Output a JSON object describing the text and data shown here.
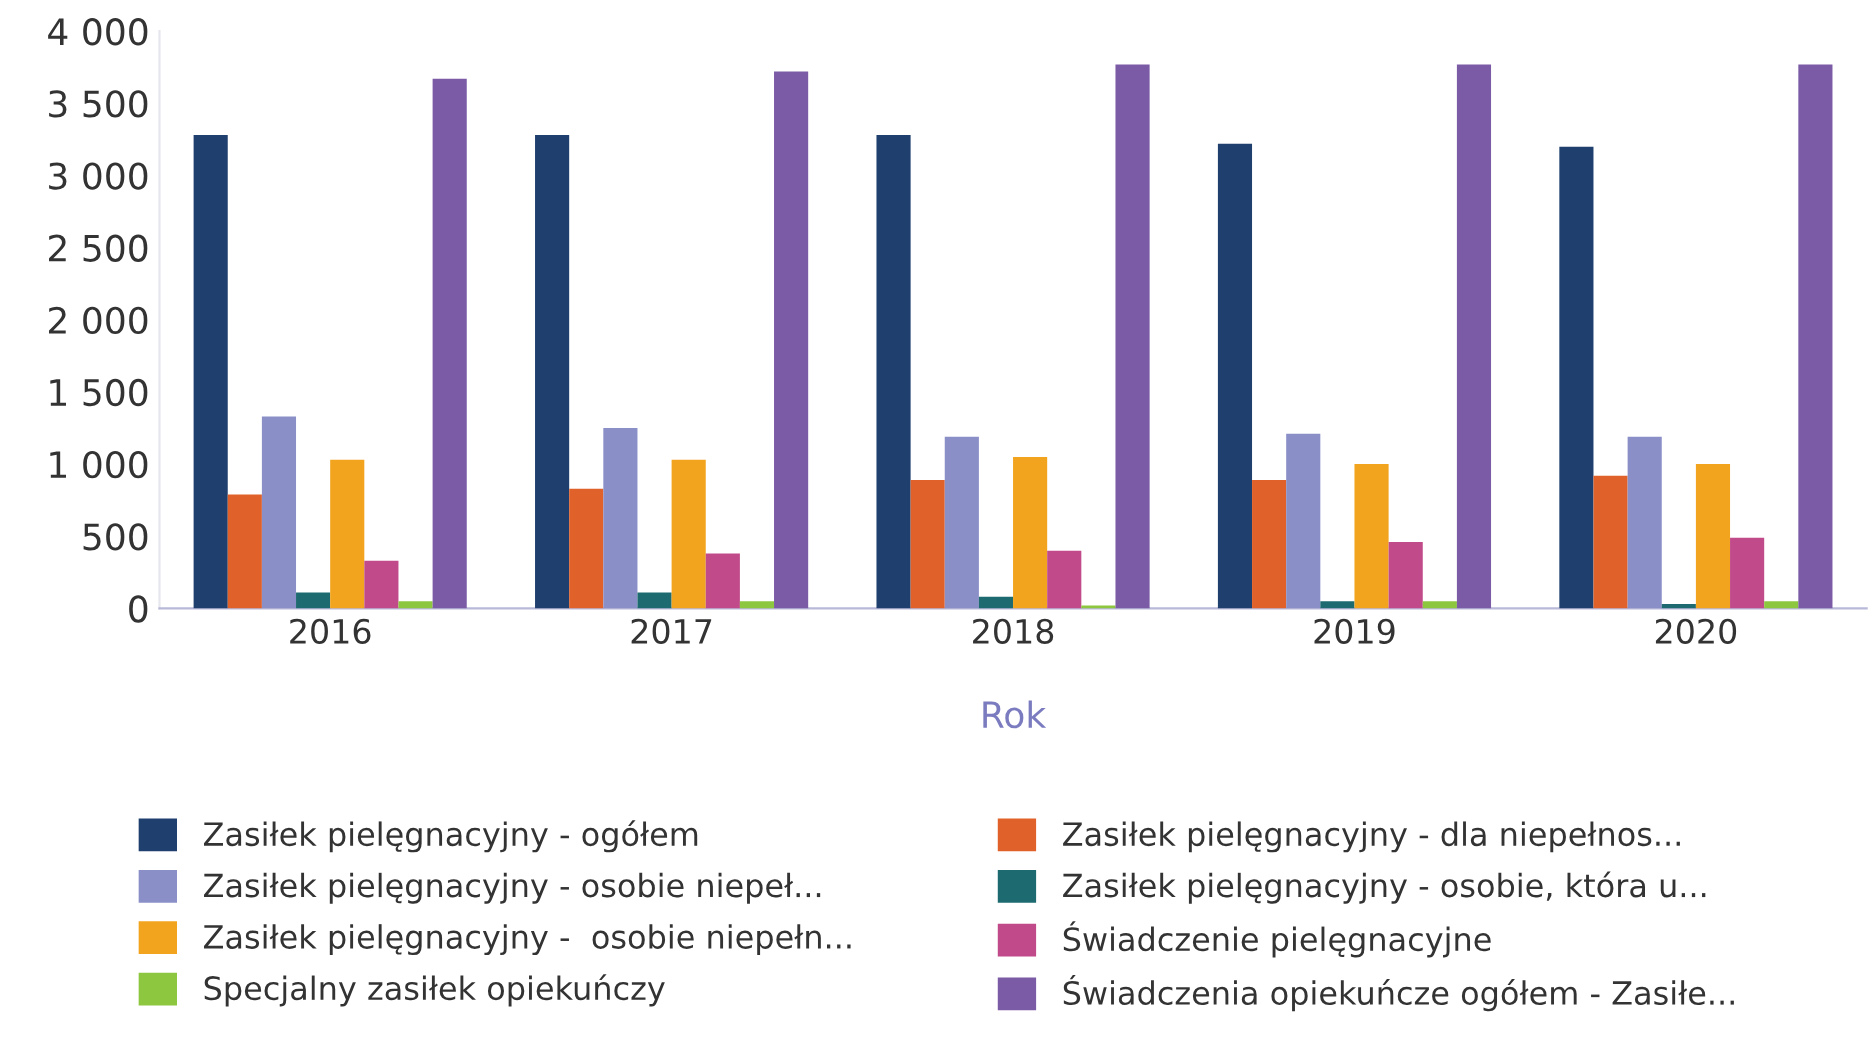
{
  "chart_data": {
    "type": "bar",
    "xlabel": "Rok",
    "categories": [
      "2016",
      "2017",
      "2018",
      "2019",
      "2020"
    ],
    "series": [
      {
        "name": "Zasiłek pielęgnacyjny - ogółem",
        "color": "#1f3f6e",
        "values": [
          3280,
          3280,
          3280,
          3220,
          3200
        ]
      },
      {
        "name": "Zasiłek pielęgnacyjny - dla niepełnos...",
        "color": "#e0622a",
        "values": [
          790,
          830,
          890,
          890,
          920
        ]
      },
      {
        "name": "Zasiłek pielęgnacyjny - osobie niepeł...",
        "color": "#8a8fc8",
        "values": [
          1330,
          1250,
          1190,
          1210,
          1190
        ]
      },
      {
        "name": "Zasiłek pielęgnacyjny - osobie, która u...",
        "color": "#1d6b70",
        "values": [
          110,
          110,
          80,
          50,
          30
        ]
      },
      {
        "name": "Zasiłek pielęgnacyjny -  osobie niepełn...",
        "color": "#f2a41e",
        "values": [
          1030,
          1030,
          1050,
          1000,
          1000
        ]
      },
      {
        "name": "Świadczenie pielęgnacyjne",
        "color": "#c04a8a",
        "values": [
          330,
          380,
          400,
          460,
          490
        ]
      },
      {
        "name": "Specjalny zasiłek opiekuńczy",
        "color": "#8dc63f",
        "values": [
          50,
          50,
          20,
          50,
          50
        ]
      },
      {
        "name": "Świadczenia opiekuńcze ogółem - Zasiłe...",
        "color": "#7b5aa6",
        "values": [
          3670,
          3720,
          3770,
          3770,
          3770
        ]
      }
    ],
    "ylim": [
      0,
      4000
    ],
    "yticks": [
      0,
      500,
      {
        "value": 1000,
        "label": "1 000"
      },
      {
        "value": 1500,
        "label": "1 500"
      },
      {
        "value": 2000,
        "label": "2 000"
      },
      {
        "value": 2500,
        "label": "2 500"
      },
      {
        "value": 3000,
        "label": "3 000"
      },
      {
        "value": 3500,
        "label": "3 500"
      },
      {
        "value": 4000,
        "label": "4 000"
      }
    ],
    "grid": false,
    "legend": "bottom"
  }
}
